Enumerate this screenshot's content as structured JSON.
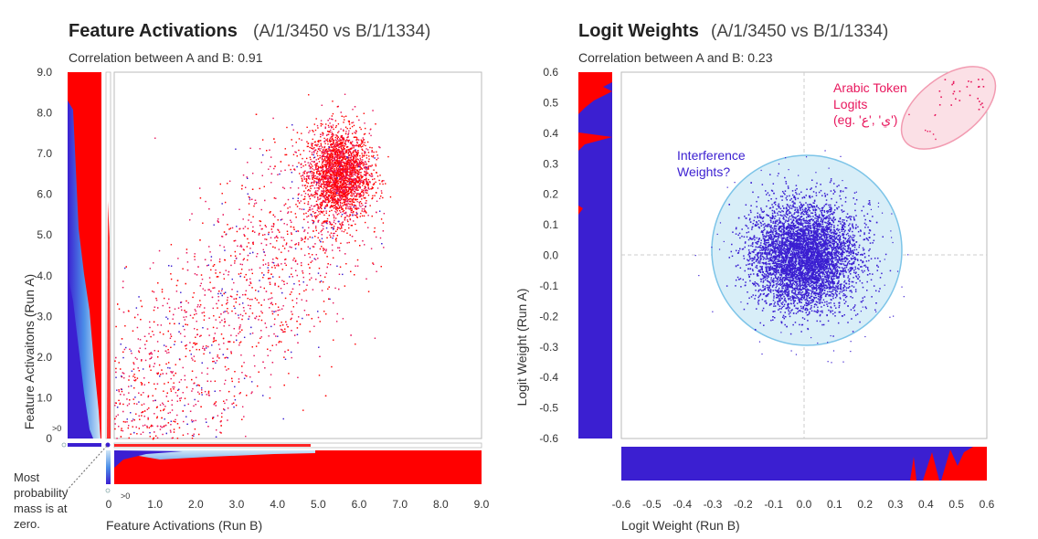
{
  "chart_data": [
    {
      "type": "scatter",
      "title": "Feature Activations",
      "subtitle": "(A/1/3450 vs B/1/1334)",
      "correlation_label": "Correlation between A and B: 0.91",
      "xlabel": "Feature Activations (Run B)",
      "ylabel": "Feature Activaitons (Run A)",
      "xlim": [
        0,
        9
      ],
      "ylim": [
        0,
        9
      ],
      "x_ticks": [
        "0",
        "1.0",
        "2.0",
        "3.0",
        "4.0",
        "5.0",
        "6.0",
        "7.0",
        "8.0",
        "9.0"
      ],
      "y_ticks": [
        "0",
        "1.0",
        "2.0",
        "3.0",
        "4.0",
        "5.0",
        "6.0",
        "7.0",
        "8.0",
        "9.0"
      ],
      "gt0_label": ">0",
      "cluster_center": [
        5.5,
        6.5
      ],
      "colors": {
        "high": "#ff0000",
        "low": "#3b1fd1",
        "mid": "#e8175d"
      },
      "annotation": [
        "Most",
        "probability",
        "mass is at",
        "zero."
      ]
    },
    {
      "type": "scatter",
      "title": "Logit Weights",
      "subtitle": "(A/1/3450 vs B/1/1334)",
      "correlation_label": "Correlation between A and B: 0.23",
      "xlabel": "Logit Weight (Run B)",
      "ylabel": "Logit Weight (Run A)",
      "xlim": [
        -0.6,
        0.6
      ],
      "ylim": [
        -0.6,
        0.6
      ],
      "x_ticks": [
        "-0.6",
        "-0.5",
        "-0.4",
        "-0.3",
        "-0.2",
        "-0.1",
        "0.0",
        "0.1",
        "0.2",
        "0.3",
        "0.4",
        "0.5",
        "0.6"
      ],
      "y_ticks": [
        "0.6",
        "0.5",
        "0.4",
        "0.3",
        "0.2",
        "0.1",
        "0.0",
        "-0.1",
        "-0.2",
        "-0.3",
        "-0.4",
        "-0.5",
        "-0.6"
      ],
      "cluster_center": [
        0,
        0
      ],
      "cluster_radius": 0.32,
      "colors": {
        "dense": "#3b1fd1",
        "circle_fill": "#d8eef8",
        "circle_stroke": "#7cc4e8",
        "ellipse_fill": "#fbe0e6",
        "ellipse_stroke": "#f29bb1",
        "accent": "#e8175d"
      },
      "annotations": {
        "interference": [
          "Interference",
          "Weights?"
        ],
        "arabic": [
          "Arabic Token",
          "Logits",
          "(eg. 'ي' ,'ع')"
        ]
      }
    }
  ]
}
